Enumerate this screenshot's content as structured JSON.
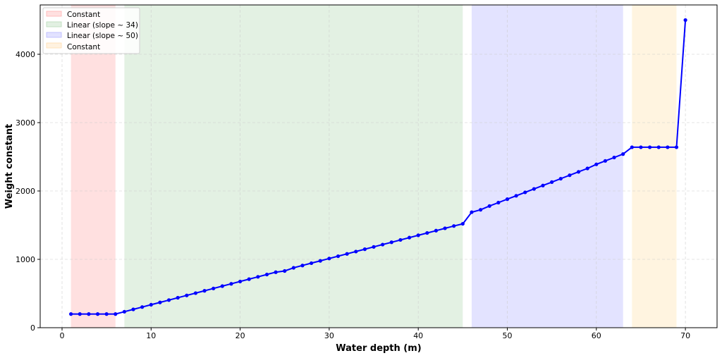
{
  "chart_data": {
    "type": "line",
    "title": "",
    "xlabel": "Water depth (m)",
    "ylabel": "Weight constant",
    "xlim": [
      -2.5,
      73.6
    ],
    "ylim": [
      -20,
      4700
    ],
    "xticks": [
      0,
      10,
      20,
      30,
      40,
      50,
      60,
      70
    ],
    "yticks": [
      0,
      1000,
      2000,
      3000,
      4000
    ],
    "grid": true,
    "legend_position": "upper left",
    "series": [
      {
        "name": "Weight constant",
        "color": "#0000ff",
        "marker": "circle",
        "x": [
          1,
          2,
          3,
          4,
          5,
          6,
          7,
          8,
          9,
          10,
          11,
          12,
          13,
          14,
          15,
          16,
          17,
          18,
          19,
          20,
          21,
          22,
          23,
          24,
          25,
          26,
          27,
          28,
          29,
          30,
          31,
          32,
          33,
          34,
          35,
          36,
          37,
          38,
          39,
          40,
          41,
          42,
          43,
          44,
          45,
          46,
          47,
          48,
          49,
          50,
          51,
          52,
          53,
          54,
          55,
          56,
          57,
          58,
          59,
          60,
          61,
          62,
          63,
          64,
          65,
          66,
          67,
          68,
          69,
          70
        ],
        "values": [
          200,
          200,
          200,
          200,
          200,
          200,
          234,
          268,
          302,
          336,
          370,
          404,
          438,
          472,
          506,
          540,
          574,
          608,
          642,
          676,
          710,
          744,
          778,
          812,
          830,
          876,
          910,
          944,
          978,
          1012,
          1046,
          1080,
          1114,
          1148,
          1182,
          1216,
          1250,
          1284,
          1318,
          1352,
          1386,
          1420,
          1454,
          1488,
          1520,
          1690,
          1725,
          1780,
          1830,
          1880,
          1930,
          1980,
          2030,
          2080,
          2130,
          2180,
          2230,
          2280,
          2330,
          2390,
          2440,
          2490,
          2540,
          2640,
          2640,
          2640,
          2640,
          2640,
          2640,
          4500
        ]
      }
    ],
    "regions": [
      {
        "label": "Constant",
        "x_start": 1,
        "x_end": 6,
        "color": "#ff0000",
        "alpha": 0.12
      },
      {
        "label": "Linear (slope ~ 34)",
        "x_start": 7,
        "x_end": 45,
        "color": "#008000",
        "alpha": 0.11
      },
      {
        "label": "Linear (slope ~ 50)",
        "x_start": 46,
        "x_end": 63,
        "color": "#0000ff",
        "alpha": 0.11
      },
      {
        "label": "Constant",
        "x_start": 64,
        "x_end": 69,
        "color": "#ffa500",
        "alpha": 0.12
      }
    ]
  },
  "legend": {
    "items": [
      {
        "label": "Constant",
        "color": "#ffe0e0",
        "edge": "#ffb3b3"
      },
      {
        "label": "Linear (slope ~ 34)",
        "color": "#e2f0e2",
        "edge": "#b8dab8"
      },
      {
        "label": "Linear (slope ~ 50)",
        "color": "#e2e2ff",
        "edge": "#b8b8ff"
      },
      {
        "label": "Constant",
        "color": "#fff2e0",
        "edge": "#ffdcb0"
      }
    ]
  },
  "axes": {
    "xlabel": "Water depth (m)",
    "ylabel": "Weight constant"
  }
}
